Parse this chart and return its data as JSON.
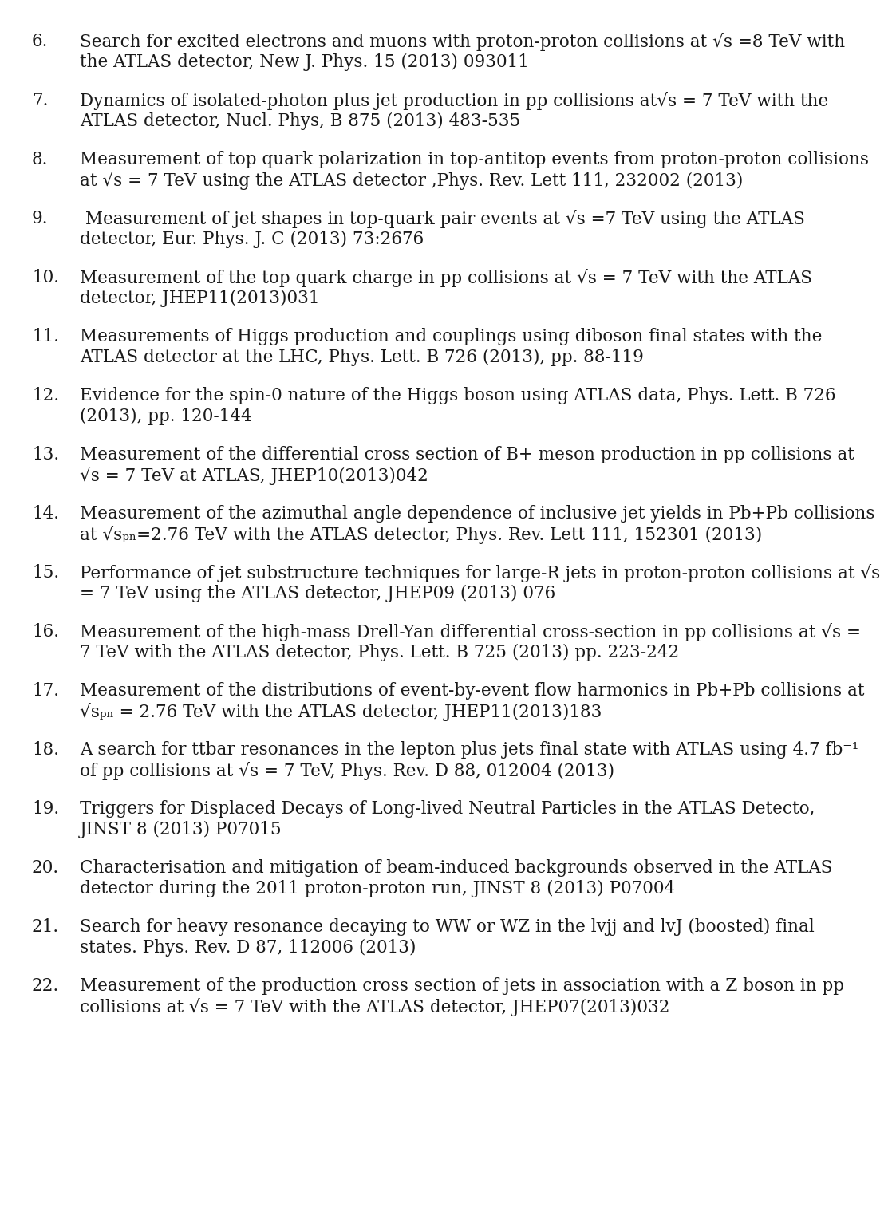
{
  "background_color": "#ffffff",
  "text_color": "#1a1a1a",
  "font_family": "DejaVu Serif",
  "font_size": 15.5,
  "entries": [
    {
      "number": "6.",
      "lines": [
        "Search for excited electrons and muons with proton-proton collisions at √s =8 TeV with",
        "the ATLAS detector, New J. Phys. 15 (2013) 093011"
      ]
    },
    {
      "number": "7.",
      "lines": [
        "Dynamics of isolated-photon plus jet production in pp collisions at√s = 7 TeV with the",
        "ATLAS detector, Nucl. Phys, B 875 (2013) 483-535"
      ]
    },
    {
      "number": "8.",
      "lines": [
        "Measurement of top quark polarization in top-antitop events from proton-proton collisions",
        "at √s = 7 TeV using the ATLAS detector ,Phys. Rev. Lett 111, 232002 (2013)"
      ]
    },
    {
      "number": "9.",
      "lines": [
        " Measurement of jet shapes in top-quark pair events at √s =7 TeV using the ATLAS",
        "detector, Eur. Phys. J. C (2013) 73:2676"
      ]
    },
    {
      "number": "10.",
      "lines": [
        "Measurement of the top quark charge in pp collisions at √s = 7 TeV with the ATLAS",
        "detector, JHEP11(2013)031"
      ]
    },
    {
      "number": "11.",
      "lines": [
        "Measurements of Higgs production and couplings using diboson final states with the",
        "ATLAS detector at the LHC, Phys. Lett. B 726 (2013), pp. 88-119"
      ]
    },
    {
      "number": "12.",
      "lines": [
        "Evidence for the spin-0 nature of the Higgs boson using ATLAS data, Phys. Lett. B 726",
        "(2013), pp. 120-144"
      ]
    },
    {
      "number": "13.",
      "lines": [
        "Measurement of the differential cross section of B+ meson production in pp collisions at",
        "√s = 7 TeV at ATLAS, JHEP10(2013)042"
      ]
    },
    {
      "number": "14.",
      "lines": [
        "Measurement of the azimuthal angle dependence of inclusive jet yields in Pb+Pb collisions",
        "at √sₚₙ=2.76 TeV with the ATLAS detector, Phys. Rev. Lett 111, 152301 (2013)"
      ]
    },
    {
      "number": "15.",
      "lines": [
        "Performance of jet substructure techniques for large-R jets in proton-proton collisions at √s",
        "= 7 TeV using the ATLAS detector, JHEP09 (2013) 076"
      ]
    },
    {
      "number": "16.",
      "lines": [
        "Measurement of the high-mass Drell-Yan differential cross-section in pp collisions at √s =",
        "7 TeV with the ATLAS detector, Phys. Lett. B 725 (2013) pp. 223-242"
      ]
    },
    {
      "number": "17.",
      "lines": [
        "Measurement of the distributions of event-by-event flow harmonics in Pb+Pb collisions at",
        "√sₚₙ = 2.76 TeV with the ATLAS detector, JHEP11(2013)183"
      ]
    },
    {
      "number": "18.",
      "lines": [
        "A search for ttbar resonances in the lepton plus jets final state with ATLAS using 4.7 fb⁻¹",
        "of pp collisions at √s = 7 TeV, Phys. Rev. D 88, 012004 (2013)"
      ]
    },
    {
      "number": "19.",
      "lines": [
        "Triggers for Displaced Decays of Long-lived Neutral Particles in the ATLAS Detecto,",
        "JINST 8 (2013) P07015"
      ]
    },
    {
      "number": "20.",
      "lines": [
        "Characterisation and mitigation of beam-induced backgrounds observed in the ATLAS",
        "detector during the 2011 proton-proton run, JINST 8 (2013) P07004"
      ]
    },
    {
      "number": "21.",
      "lines": [
        "Search for heavy resonance decaying to WW or WZ in the lvjj and lvJ (boosted) final",
        "states. Phys. Rev. D 87, 112006 (2013)"
      ]
    },
    {
      "number": "22.",
      "lines": [
        "Measurement of the production cross section of jets in association with a Z boson in pp",
        "collisions at √s = 7 TeV with the ATLAS detector, JHEP07(2013)032"
      ]
    }
  ]
}
